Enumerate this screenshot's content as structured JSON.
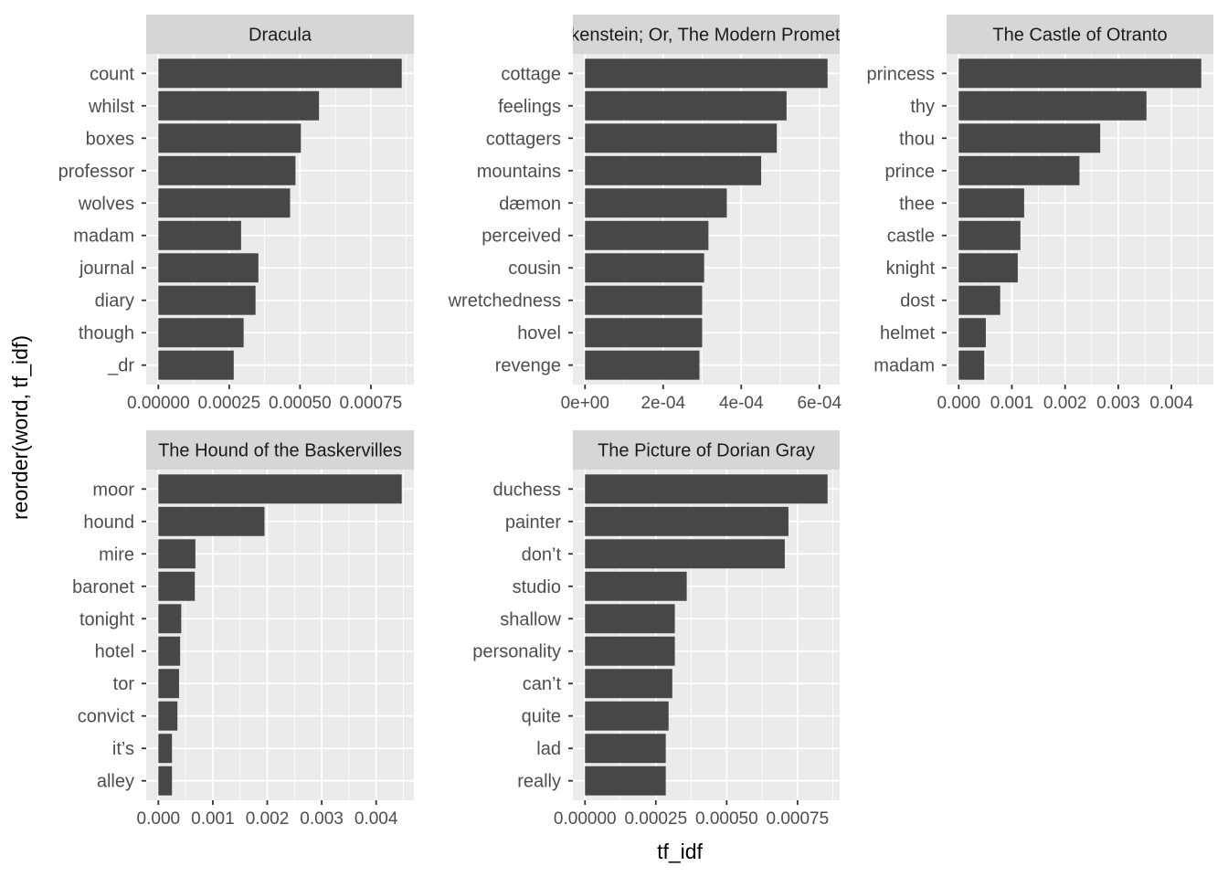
{
  "chart_data": {
    "type": "bar",
    "orientation": "horizontal",
    "xlabel": "tf_idf",
    "ylabel": "reorder(word, tf_idf)",
    "grid": true,
    "colors": {
      "bar": "#474747",
      "panel": "#EBEBEB",
      "strip": "#D6D6D6",
      "grid": "#FFFFFF",
      "tick_text": "#4D4D4D",
      "title_text": "#000000"
    },
    "panels": [
      {
        "title": "Dracula",
        "categories": [
          "count",
          "whilst",
          "boxes",
          "professor",
          "wolves",
          "madam",
          "journal",
          "diary",
          "though",
          "_dr"
        ],
        "values": [
          0.000859,
          0.000567,
          0.000503,
          0.000484,
          0.000465,
          0.000292,
          0.000353,
          0.000343,
          0.000301,
          0.000266
        ],
        "ticks": [
          0,
          0.00025,
          0.0005,
          0.00075
        ],
        "tick_labels": [
          "0.00000",
          "0.00025",
          "0.00050",
          "0.00075"
        ]
      },
      {
        "title": "Frankenstein; Or, The Modern Prometheus",
        "categories": [
          "cottage",
          "feelings",
          "cottagers",
          "mountains",
          "dæmon",
          "perceived",
          "cousin",
          "wretchedness",
          "hovel",
          "revenge"
        ],
        "values": [
          0.000621,
          0.000516,
          0.000491,
          0.000451,
          0.000363,
          0.000316,
          0.000305,
          0.0003,
          0.0003,
          0.000293
        ],
        "ticks": [
          0,
          0.0002,
          0.0004,
          0.0006
        ],
        "tick_labels": [
          "0e+00",
          "2e-04",
          "4e-04",
          "6e-04"
        ]
      },
      {
        "title": "The Castle of Otranto",
        "categories": [
          "princess",
          "thy",
          "thou",
          "prince",
          "thee",
          "castle",
          "knight",
          "dost",
          "helmet",
          "madam"
        ],
        "values": [
          0.00456,
          0.00353,
          0.00266,
          0.00227,
          0.00123,
          0.00116,
          0.00111,
          0.00078,
          0.00051,
          0.00048
        ],
        "ticks": [
          0,
          0.001,
          0.002,
          0.003,
          0.004
        ],
        "tick_labels": [
          "0.000",
          "0.001",
          "0.002",
          "0.003",
          "0.004"
        ]
      },
      {
        "title": "The Hound of the Baskervilles",
        "categories": [
          "moor",
          "hound",
          "mire",
          "baronet",
          "tonight",
          "hotel",
          "tor",
          "convict",
          "it’s",
          "alley"
        ],
        "values": [
          0.00447,
          0.00195,
          0.00068,
          0.00067,
          0.00042,
          0.0004,
          0.00038,
          0.00035,
          0.00025,
          0.00025
        ],
        "ticks": [
          0,
          0.001,
          0.002,
          0.003,
          0.004
        ],
        "tick_labels": [
          "0.000",
          "0.001",
          "0.002",
          "0.003",
          "0.004"
        ]
      },
      {
        "title": "The Picture of Dorian Gray",
        "categories": [
          "duchess",
          "painter",
          "don’t",
          "studio",
          "shallow",
          "personality",
          "can’t",
          "quite",
          "lad",
          "really"
        ],
        "values": [
          0.000856,
          0.000718,
          0.000705,
          0.000359,
          0.000317,
          0.000317,
          0.000308,
          0.000295,
          0.000285,
          0.000285
        ],
        "ticks": [
          0,
          0.00025,
          0.0005,
          0.00075
        ],
        "tick_labels": [
          "0.00000",
          "0.00025",
          "0.00050",
          "0.00075"
        ]
      }
    ]
  }
}
